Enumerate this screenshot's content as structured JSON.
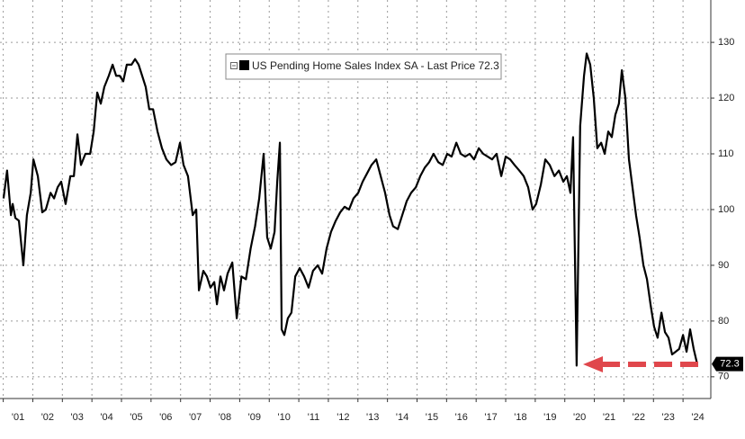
{
  "chart_data": {
    "type": "line",
    "legend": "top",
    "grid": true,
    "xlim": [
      2000.89,
      2024.94
    ],
    "ylim": [
      66.1,
      137.6
    ],
    "yaxis": "right",
    "yticks": [
      70,
      80,
      90,
      100,
      110,
      120,
      130
    ],
    "xticks": [
      {
        "value": 2001,
        "label": "'01"
      },
      {
        "value": 2002,
        "label": "'02"
      },
      {
        "value": 2003,
        "label": "'03"
      },
      {
        "value": 2004,
        "label": "'04"
      },
      {
        "value": 2005,
        "label": "'05"
      },
      {
        "value": 2006,
        "label": "'06"
      },
      {
        "value": 2007,
        "label": "'07"
      },
      {
        "value": 2008,
        "label": "'08"
      },
      {
        "value": 2009,
        "label": "'09"
      },
      {
        "value": 2010,
        "label": "'10"
      },
      {
        "value": 2011,
        "label": "'11"
      },
      {
        "value": 2012,
        "label": "'12"
      },
      {
        "value": 2013,
        "label": "'13"
      },
      {
        "value": 2014,
        "label": "'14"
      },
      {
        "value": 2015,
        "label": "'15"
      },
      {
        "value": 2016,
        "label": "'16"
      },
      {
        "value": 2017,
        "label": "'17"
      },
      {
        "value": 2018,
        "label": "'18"
      },
      {
        "value": 2019,
        "label": "'19"
      },
      {
        "value": 2020,
        "label": "'20"
      },
      {
        "value": 2021,
        "label": "'21"
      },
      {
        "value": 2022,
        "label": "'22"
      },
      {
        "value": 2023,
        "label": "'23"
      },
      {
        "value": 2024,
        "label": "'24"
      }
    ],
    "series": [
      {
        "name": "US Pending Home Sales Index SA - Last Price 72.3",
        "color": "#000000",
        "x": [
          2001.01,
          2001.13,
          2001.26,
          2001.32,
          2001.41,
          2001.53,
          2001.68,
          2001.8,
          2001.93,
          2002.02,
          2002.17,
          2002.32,
          2002.44,
          2002.6,
          2002.72,
          2002.84,
          2002.96,
          2003.11,
          2003.27,
          2003.39,
          2003.51,
          2003.63,
          2003.78,
          2003.94,
          2004.06,
          2004.18,
          2004.3,
          2004.42,
          2004.57,
          2004.7,
          2004.82,
          2004.94,
          2005.06,
          2005.18,
          2005.34,
          2005.46,
          2005.58,
          2005.7,
          2005.82,
          2005.94,
          2006.07,
          2006.22,
          2006.37,
          2006.52,
          2006.68,
          2006.83,
          2006.98,
          2007.1,
          2007.25,
          2007.41,
          2007.53,
          2007.62,
          2007.77,
          2007.89,
          2008.01,
          2008.14,
          2008.23,
          2008.35,
          2008.47,
          2008.59,
          2008.75,
          2008.9,
          2009.06,
          2009.21,
          2009.37,
          2009.52,
          2009.66,
          2009.81,
          2009.93,
          2010.05,
          2010.18,
          2010.27,
          2010.36,
          2010.42,
          2010.51,
          2010.63,
          2010.75,
          2010.88,
          2011.03,
          2011.18,
          2011.33,
          2011.48,
          2011.64,
          2011.79,
          2011.94,
          2012.09,
          2012.25,
          2012.4,
          2012.55,
          2012.7,
          2012.85,
          2013.01,
          2013.16,
          2013.31,
          2013.46,
          2013.62,
          2013.77,
          2013.92,
          2014.07,
          2014.19,
          2014.35,
          2014.5,
          2014.65,
          2014.8,
          2014.96,
          2015.11,
          2015.26,
          2015.41,
          2015.56,
          2015.72,
          2015.87,
          2016.02,
          2016.17,
          2016.33,
          2016.48,
          2016.63,
          2016.78,
          2016.93,
          2017.09,
          2017.24,
          2017.39,
          2017.54,
          2017.69,
          2017.85,
          2018.0,
          2018.15,
          2018.3,
          2018.46,
          2018.61,
          2018.76,
          2018.91,
          2019.03,
          2019.19,
          2019.34,
          2019.49,
          2019.65,
          2019.8,
          2019.95,
          2020.07,
          2020.19,
          2020.28,
          2020.4,
          2020.52,
          2020.65,
          2020.74,
          2020.86,
          2020.98,
          2021.1,
          2021.23,
          2021.35,
          2021.47,
          2021.59,
          2021.71,
          2021.83,
          2021.93,
          2022.05,
          2022.17,
          2022.29,
          2022.41,
          2022.53,
          2022.66,
          2022.78,
          2022.9,
          2023.02,
          2023.14,
          2023.27,
          2023.39,
          2023.51,
          2023.63,
          2023.75,
          2023.87,
          2024.0,
          2024.12,
          2024.24,
          2024.36,
          2024.48
        ],
        "values": [
          102,
          107,
          99,
          101,
          98.5,
          98,
          90,
          99,
          103,
          109,
          106,
          99.5,
          100,
          103,
          102,
          104,
          105,
          101,
          106,
          106,
          113.5,
          108,
          110,
          110,
          114,
          121,
          119,
          122,
          124,
          126,
          124,
          124,
          123,
          126,
          126,
          127,
          126,
          124,
          122,
          118,
          118,
          114,
          111,
          109,
          108,
          108.5,
          112,
          108,
          106,
          99,
          100,
          85.5,
          89,
          88,
          86,
          87,
          83,
          88,
          85.5,
          88.5,
          90.5,
          80.5,
          88,
          87.5,
          93,
          97,
          102,
          110,
          95,
          93,
          96,
          105,
          112,
          78.5,
          77.5,
          80.5,
          81.5,
          88,
          89.5,
          88,
          86,
          89,
          90,
          88.5,
          93,
          96,
          98,
          99.5,
          100.5,
          100,
          102,
          103,
          105,
          106.5,
          108,
          109,
          106,
          103,
          99,
          97,
          96.5,
          99,
          101.5,
          103,
          104,
          106,
          107.5,
          108.5,
          110,
          108.5,
          108,
          110,
          109.5,
          112,
          110,
          109.5,
          110,
          109,
          111,
          110,
          109.5,
          109,
          110,
          106,
          109.5,
          109,
          108,
          107,
          106,
          104,
          100,
          101,
          104.5,
          109,
          108,
          106,
          107,
          105,
          106,
          103,
          113,
          72,
          115,
          124,
          128,
          126,
          120,
          111,
          112,
          110,
          114,
          113,
          117,
          119,
          125,
          120,
          109,
          104,
          99,
          95,
          90,
          87.5,
          83,
          79,
          77,
          81.5,
          78,
          77,
          74,
          74.5,
          75,
          77.5,
          74.5,
          78.5,
          75,
          72.3
        ]
      }
    ]
  }
}
